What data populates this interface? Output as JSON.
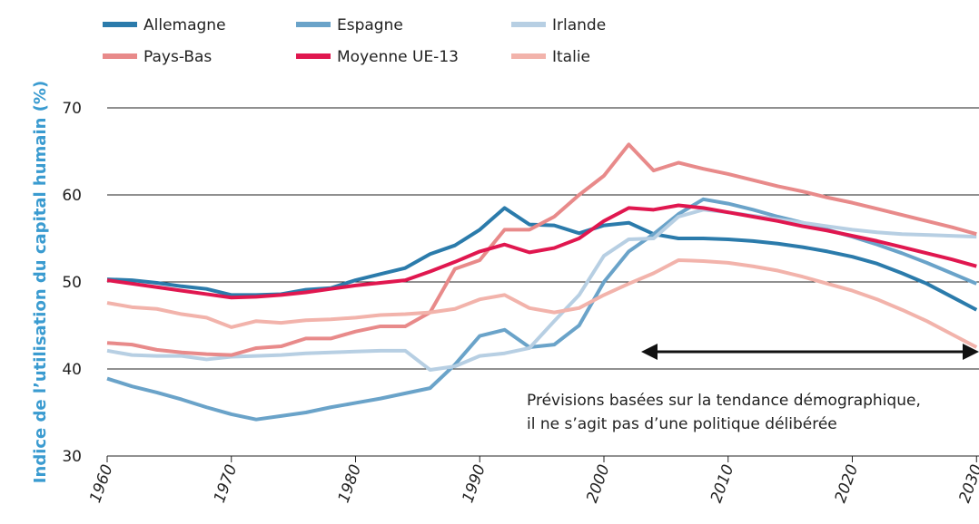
{
  "chart_data": {
    "type": "line",
    "y_label": "Indice de l’utilisation du capital humain (%)",
    "annotation": [
      "Prévisions basées sur la tendance démographique,",
      "il ne s’agit pas d’une politique délibérée"
    ],
    "x": [
      1960,
      1962,
      1964,
      1966,
      1968,
      1970,
      1972,
      1974,
      1976,
      1978,
      1980,
      1982,
      1984,
      1986,
      1988,
      1990,
      1992,
      1994,
      1996,
      1998,
      2000,
      2002,
      2004,
      2006,
      2008,
      2010,
      2012,
      2014,
      2016,
      2018,
      2020,
      2022,
      2024,
      2026,
      2028,
      2030
    ],
    "xlim": [
      1960,
      2030.2
    ],
    "xticks": [
      1960,
      1970,
      1980,
      1990,
      2000,
      2010,
      2020,
      2030
    ],
    "ylim": [
      30,
      70
    ],
    "yticks": [
      30,
      40,
      50,
      60,
      70
    ],
    "grid": true,
    "series": [
      {
        "name": "Allemagne",
        "color": "#2b7bab",
        "values": [
          50.3,
          50.2,
          49.9,
          49.5,
          49.2,
          48.5,
          48.5,
          48.6,
          49.1,
          49.3,
          50.2,
          50.9,
          51.6,
          53.2,
          54.2,
          56.0,
          58.5,
          56.6,
          56.5,
          55.6,
          56.5,
          56.8,
          55.5,
          55.0,
          55.0,
          54.9,
          54.7,
          54.4,
          54.0,
          53.5,
          52.9,
          52.1,
          51.0,
          49.8,
          48.3,
          46.8
        ]
      },
      {
        "name": "Espagne",
        "color": "#6aa3c9",
        "values": [
          38.9,
          38.0,
          37.3,
          36.5,
          35.6,
          34.8,
          34.2,
          34.6,
          35.0,
          35.6,
          36.1,
          36.6,
          37.2,
          37.8,
          40.5,
          43.8,
          44.5,
          42.5,
          42.8,
          45.0,
          50.0,
          53.5,
          55.5,
          57.8,
          59.5,
          59.0,
          58.3,
          57.5,
          56.8,
          56.0,
          55.2,
          54.3,
          53.3,
          52.2,
          51.0,
          49.8
        ]
      },
      {
        "name": "Irlande",
        "color": "#b7cfe3",
        "values": [
          42.1,
          41.6,
          41.5,
          41.5,
          41.1,
          41.4,
          41.5,
          41.6,
          41.8,
          41.9,
          42.0,
          42.1,
          42.1,
          39.9,
          40.3,
          41.5,
          41.8,
          42.4,
          45.5,
          48.5,
          53.0,
          54.9,
          55.0,
          57.5,
          58.3,
          58.0,
          57.6,
          57.2,
          56.8,
          56.4,
          56.0,
          55.7,
          55.5,
          55.4,
          55.3,
          55.2
        ]
      },
      {
        "name": "Pays-Bas",
        "color": "#e88a8a",
        "values": [
          43.0,
          42.8,
          42.2,
          41.9,
          41.7,
          41.6,
          42.4,
          42.6,
          43.5,
          43.5,
          44.3,
          44.9,
          44.9,
          46.5,
          51.5,
          52.5,
          56.0,
          56.0,
          57.5,
          60.0,
          62.2,
          65.8,
          62.8,
          63.7,
          63.0,
          62.4,
          61.7,
          61.0,
          60.4,
          59.7,
          59.1,
          58.4,
          57.7,
          57.0,
          56.3,
          55.5
        ]
      },
      {
        "name": "Moyenne UE-13",
        "color": "#e0174f",
        "values": [
          50.2,
          49.8,
          49.4,
          49.0,
          48.6,
          48.2,
          48.3,
          48.5,
          48.8,
          49.2,
          49.6,
          49.9,
          50.2,
          51.2,
          52.3,
          53.5,
          54.3,
          53.4,
          53.9,
          55.0,
          57.0,
          58.5,
          58.3,
          58.8,
          58.5,
          58.0,
          57.5,
          57.0,
          56.4,
          55.9,
          55.3,
          54.7,
          54.0,
          53.3,
          52.6,
          51.8
        ]
      },
      {
        "name": "Italie",
        "color": "#f2b3ab",
        "values": [
          47.6,
          47.1,
          46.9,
          46.3,
          45.9,
          44.8,
          45.5,
          45.3,
          45.6,
          45.7,
          45.9,
          46.2,
          46.3,
          46.5,
          46.9,
          48.0,
          48.5,
          47.0,
          46.5,
          47.0,
          48.5,
          49.8,
          51.0,
          52.5,
          52.4,
          52.2,
          51.8,
          51.3,
          50.6,
          49.8,
          49.0,
          48.0,
          46.8,
          45.5,
          44.0,
          42.5
        ]
      }
    ]
  }
}
